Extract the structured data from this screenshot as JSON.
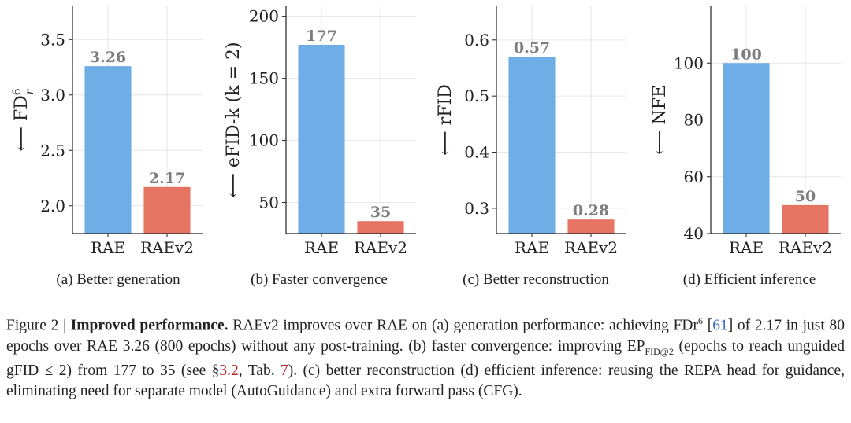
{
  "chart_data": [
    {
      "type": "bar",
      "categories": [
        "RAE",
        "RAEv2"
      ],
      "values": [
        3.26,
        2.17
      ],
      "value_labels": [
        "3.26",
        "2.17"
      ],
      "ylabel": "⟵ FD",
      "ylabel_sup": "6",
      "ylabel_sub": "r",
      "ylim": [
        1.75,
        3.8
      ],
      "yticks": [
        2.0,
        2.5,
        3.0,
        3.5
      ],
      "ytick_labels": [
        "2.0",
        "2.5",
        "3.0",
        "3.5"
      ],
      "colors": [
        "#6fade6",
        "#e67463"
      ],
      "grid": true,
      "subcaption": "(a) Better generation"
    },
    {
      "type": "bar",
      "categories": [
        "RAE",
        "RAEv2"
      ],
      "values": [
        177,
        35
      ],
      "value_labels": [
        "177",
        "35"
      ],
      "ylabel": "⟵ eFID-k (k = 2)",
      "ylim": [
        25,
        208
      ],
      "yticks": [
        50,
        100,
        150,
        200
      ],
      "ytick_labels": [
        "50",
        "100",
        "150",
        "200"
      ],
      "colors": [
        "#6fade6",
        "#e67463"
      ],
      "grid": true,
      "subcaption": "(b) Faster convergence"
    },
    {
      "type": "bar",
      "categories": [
        "RAE",
        "RAEv2"
      ],
      "values": [
        0.57,
        0.28
      ],
      "value_labels": [
        "0.57",
        "0.28"
      ],
      "ylabel": "⟵ rFID",
      "ylim": [
        0.255,
        0.66
      ],
      "yticks": [
        0.3,
        0.4,
        0.5,
        0.6
      ],
      "ytick_labels": [
        "0.3",
        "0.4",
        "0.5",
        "0.6"
      ],
      "colors": [
        "#6fade6",
        "#e67463"
      ],
      "grid": true,
      "subcaption": "(c) Better reconstruction"
    },
    {
      "type": "bar",
      "categories": [
        "RAE",
        "RAEv2"
      ],
      "values": [
        100,
        50
      ],
      "value_labels": [
        "100",
        "50"
      ],
      "ylabel": "⟵ NFE",
      "ylim": [
        40,
        120
      ],
      "yticks": [
        40,
        60,
        80,
        100
      ],
      "ytick_labels": [
        "40",
        "60",
        "80",
        "100"
      ],
      "colors": [
        "#6fade6",
        "#e67463"
      ],
      "grid": true,
      "subcaption": "(d) Efficient inference"
    }
  ],
  "caption": {
    "figure_label": "Figure 2 | ",
    "bold_title": "Improved performance.",
    "t1": " RAEv2 improves over RAE on (a) generation performance: achieving FDr",
    "sup1": "6",
    "t2": " [",
    "ref1": "61",
    "t3": "] of 2.17 in just 80 epochs over RAE 3.26 (800 epochs) without any post-training. (b) faster convergence: improving EP",
    "sub1": "FID@2",
    "t4": " (epochs to reach unguided gFID ≤ 2) from 177 to 35 (see §",
    "ref2": "3.2",
    "t5": ", Tab. ",
    "ref3": "7",
    "t6": "). (c) better reconstruction (d) efficient inference: reusing the REPA head for guidance, eliminating need for separate model (AutoGuidance) and extra forward pass (CFG)."
  }
}
